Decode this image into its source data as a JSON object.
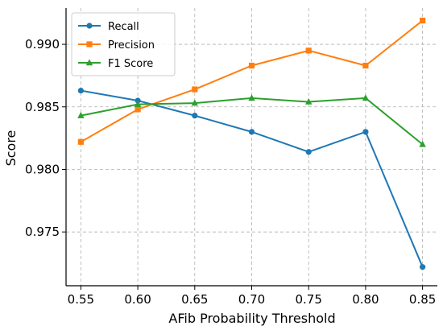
{
  "chart_data": {
    "type": "line",
    "x": [
      0.55,
      0.6,
      0.65,
      0.7,
      0.75,
      0.8,
      0.85
    ],
    "x_tick_labels": [
      "0.55",
      "0.60",
      "0.65",
      "0.70",
      "0.75",
      "0.80",
      "0.85"
    ],
    "y_tick_labels": [
      "0.975",
      "0.980",
      "0.985",
      "0.990"
    ],
    "y_ticks": [
      0.975,
      0.98,
      0.985,
      0.99
    ],
    "xlim": [
      0.537,
      0.863
    ],
    "ylim": [
      0.9707,
      0.9929
    ],
    "xlabel": "AFib Probability Threshold",
    "ylabel": "Score",
    "grid": true,
    "legend_position": "top-left",
    "series": [
      {
        "name": "Recall",
        "color": "#1f77b4",
        "marker": "circle",
        "values": [
          0.9863,
          0.9855,
          0.9843,
          0.983,
          0.9814,
          0.983,
          0.9722
        ]
      },
      {
        "name": "Precision",
        "color": "#ff7f0e",
        "marker": "square",
        "values": [
          0.9822,
          0.9848,
          0.9864,
          0.9883,
          0.9895,
          0.9883,
          0.9919
        ]
      },
      {
        "name": "F1 Score",
        "color": "#2ca02c",
        "marker": "triangle",
        "values": [
          0.9843,
          0.9852,
          0.9853,
          0.9857,
          0.9854,
          0.9857,
          0.982
        ]
      }
    ]
  }
}
